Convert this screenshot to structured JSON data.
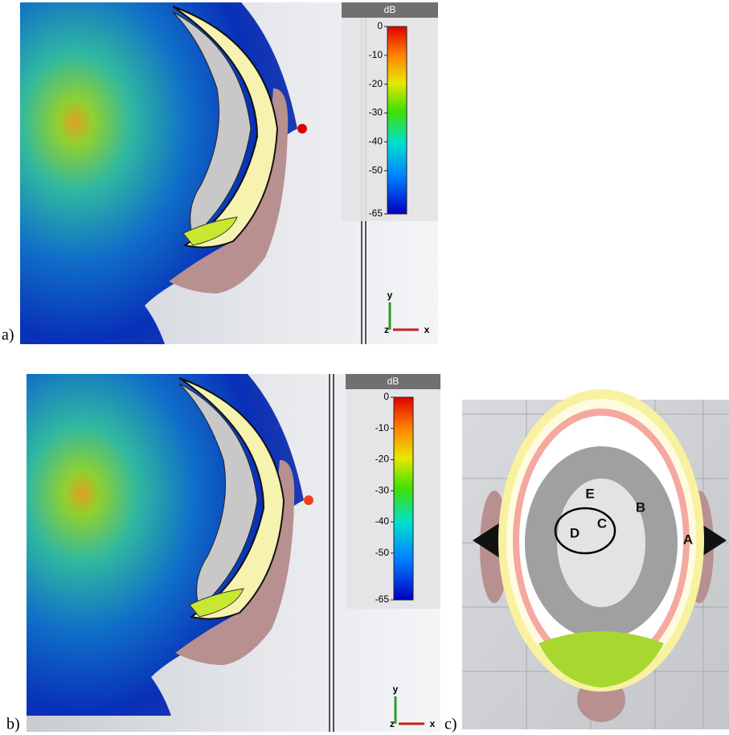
{
  "panels": [
    {
      "label": "a)",
      "colorbar": {
        "title": "dB",
        "ticks": [
          0,
          -10,
          -20,
          -30,
          -40,
          -50,
          -65
        ]
      },
      "axes": [
        "y",
        "z",
        "x"
      ]
    },
    {
      "label": "b)",
      "colorbar": {
        "title": "dB",
        "ticks": [
          0,
          -10,
          -20,
          -30,
          -40,
          -50,
          -65
        ]
      },
      "axes": [
        "y",
        "z",
        "x"
      ]
    },
    {
      "label": "c)",
      "markers": [
        "A",
        "B",
        "C",
        "D",
        "E"
      ]
    }
  ]
}
